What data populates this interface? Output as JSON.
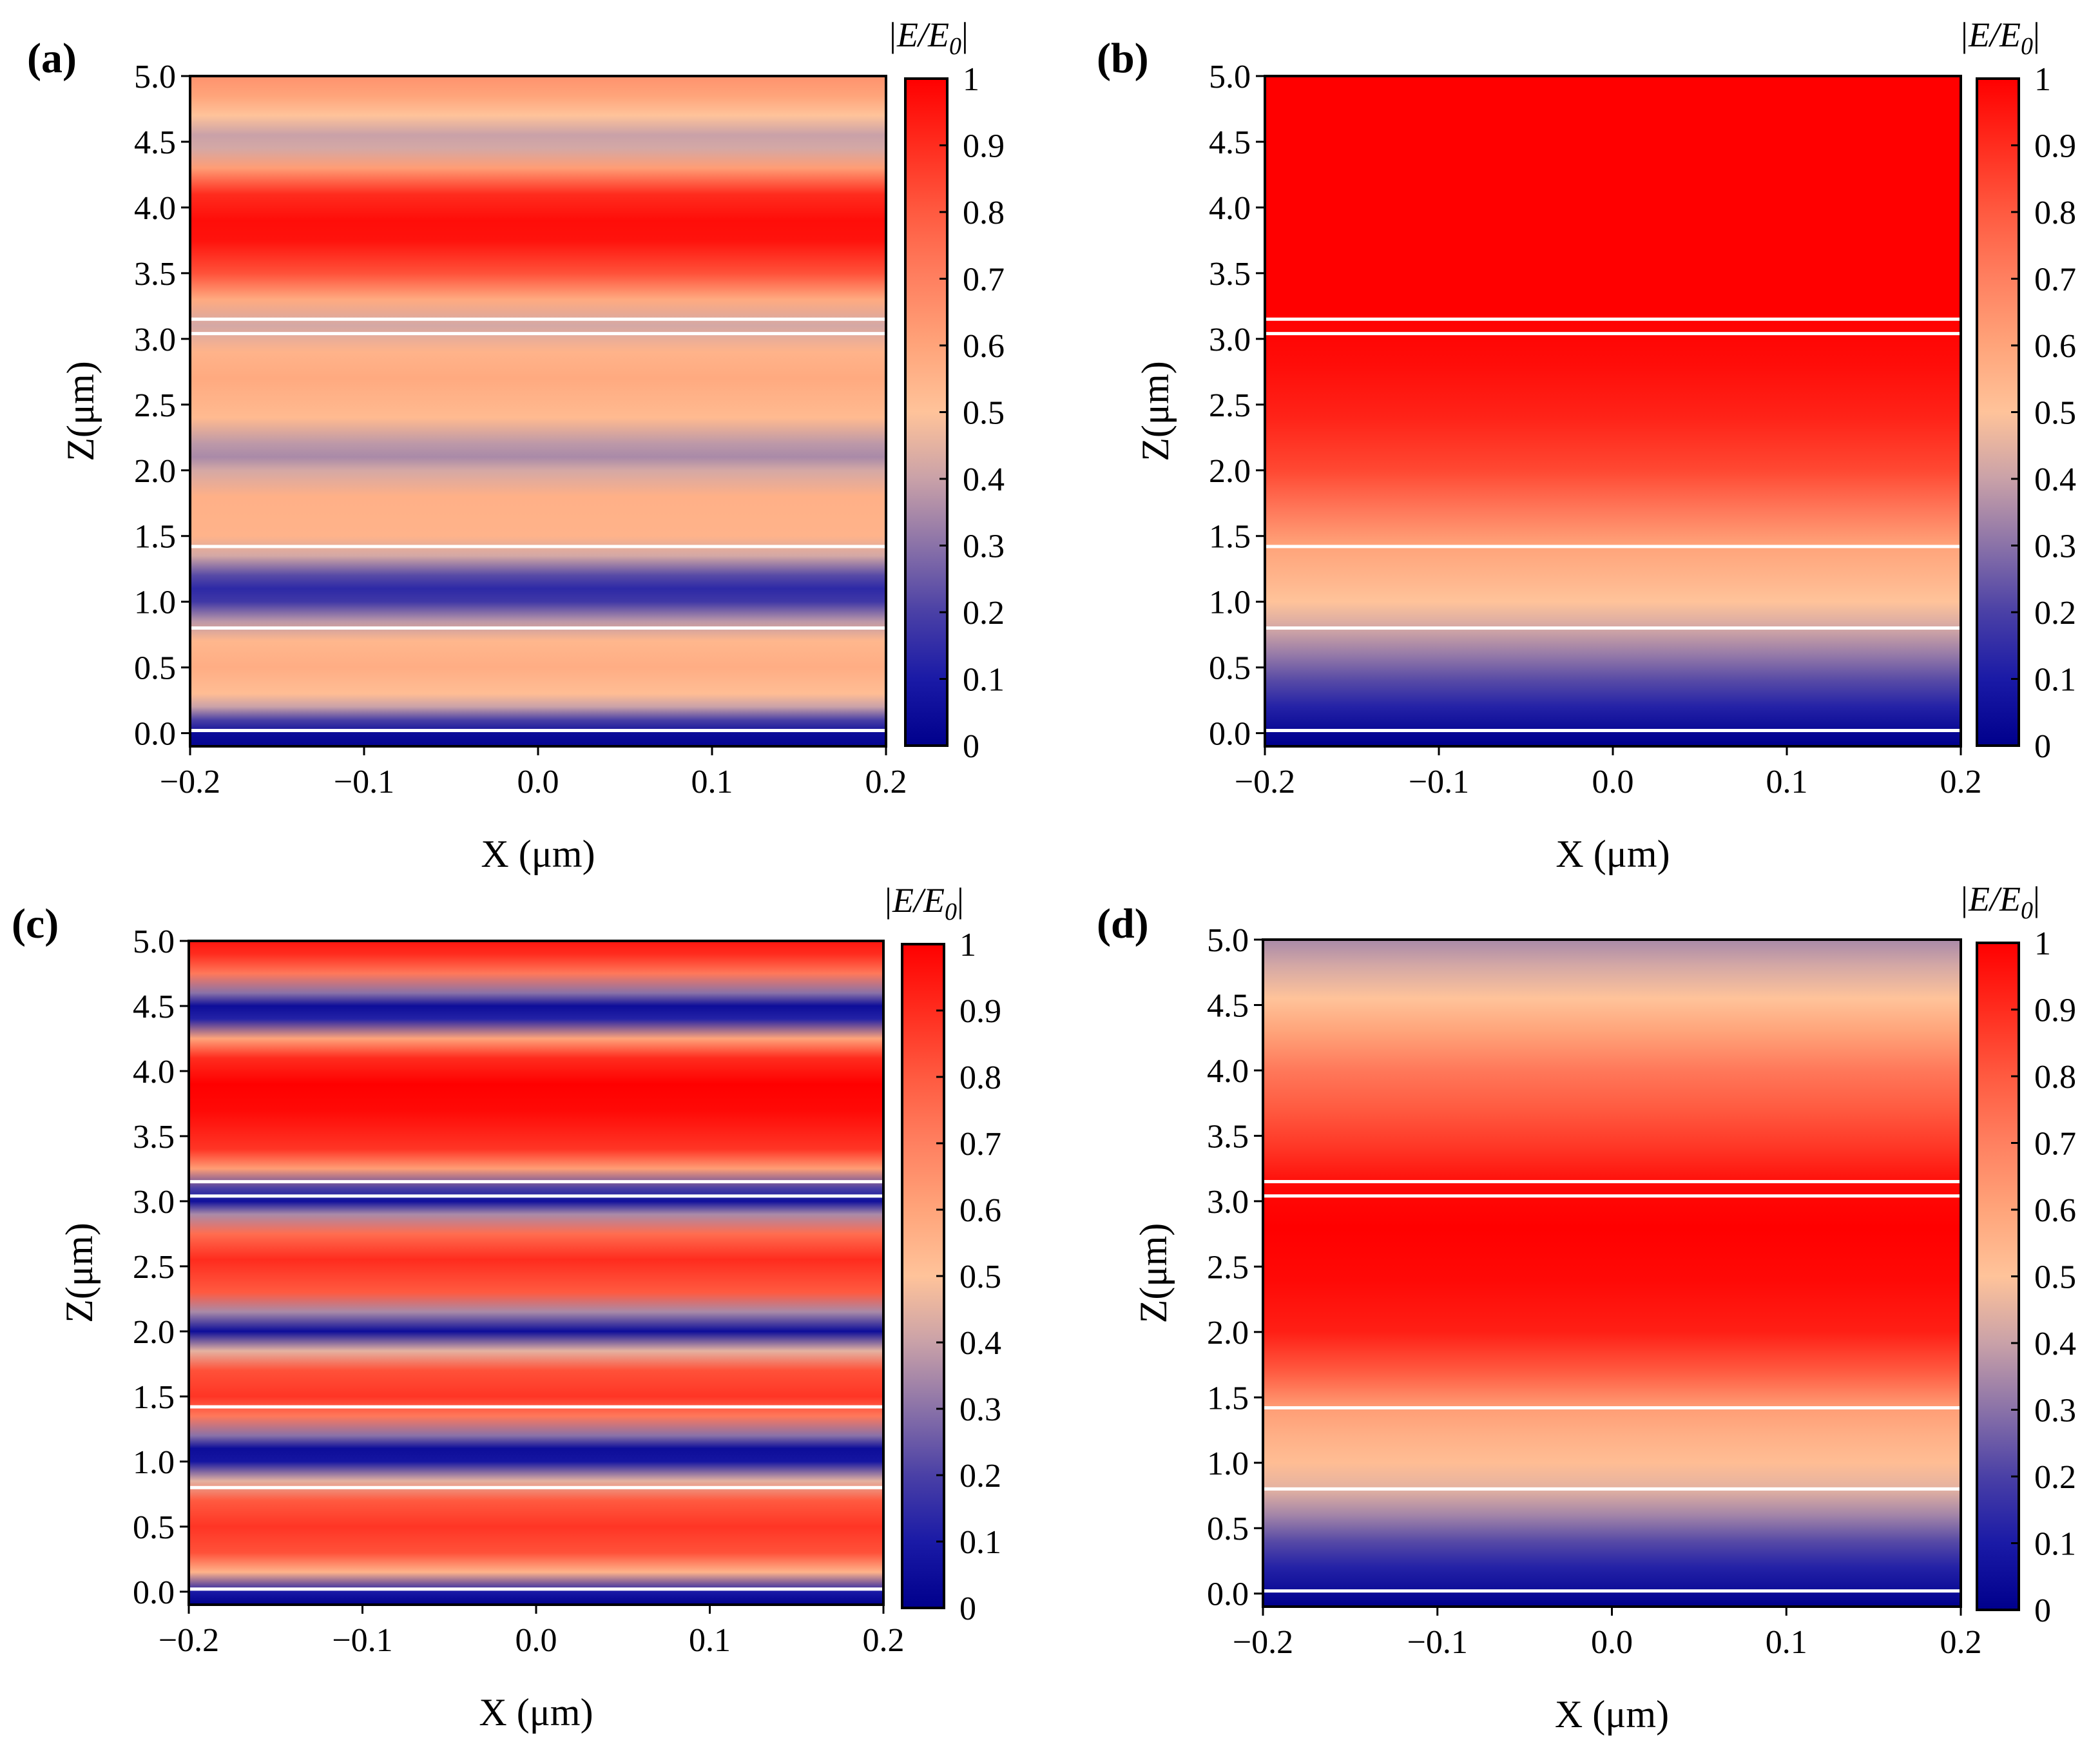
{
  "figure": {
    "colorbar_label_base": "|E/E",
    "colorbar_label_sub": "0",
    "colorbar_label_close": "|",
    "colorbar_ticks": [
      "0",
      "0.1",
      "0.2",
      "0.3",
      "0.4",
      "0.5",
      "0.6",
      "0.7",
      "0.8",
      "0.9",
      "1"
    ],
    "colormap": [
      {
        "v": 0.0,
        "color": "#00008c"
      },
      {
        "v": 0.1,
        "color": "#1a1aa6"
      },
      {
        "v": 0.2,
        "color": "#4a40a6"
      },
      {
        "v": 0.3,
        "color": "#8a72a8"
      },
      {
        "v": 0.4,
        "color": "#c9a1a8"
      },
      {
        "v": 0.5,
        "color": "#ffc39a"
      },
      {
        "v": 0.6,
        "color": "#ffa47a"
      },
      {
        "v": 0.7,
        "color": "#ff8060"
      },
      {
        "v": 0.8,
        "color": "#ff5a40"
      },
      {
        "v": 0.9,
        "color": "#ff2c1e"
      },
      {
        "v": 1.0,
        "color": "#ff0000"
      }
    ],
    "interface_line_color": "#ffffff"
  },
  "chart_data": [
    {
      "panel": "(a)",
      "type": "heatmap",
      "xlabel": "X (μm)",
      "ylabel": "Z(μm)",
      "xlim": [
        -0.2,
        0.2
      ],
      "ylim": [
        -0.1,
        5.0
      ],
      "xticks": [
        "−0.2",
        "−0.1",
        "0.0",
        "0.1",
        "0.2"
      ],
      "xtick_values": [
        -0.2,
        -0.1,
        0.0,
        0.1,
        0.2
      ],
      "yticks": [
        "0.0",
        "0.5",
        "1.0",
        "1.5",
        "2.0",
        "2.5",
        "3.0",
        "3.5",
        "4.0",
        "4.5",
        "5.0"
      ],
      "ytick_values": [
        0.0,
        0.5,
        1.0,
        1.5,
        2.0,
        2.5,
        3.0,
        3.5,
        4.0,
        4.5,
        5.0
      ],
      "colorbar_range": [
        0,
        1
      ],
      "interfaces_z": [
        0.02,
        0.8,
        1.42,
        3.04,
        3.15
      ],
      "profile": [
        {
          "z": -0.1,
          "v": 0.02
        },
        {
          "z": 0.0,
          "v": 0.05
        },
        {
          "z": 0.1,
          "v": 0.2
        },
        {
          "z": 0.2,
          "v": 0.4
        },
        {
          "z": 0.3,
          "v": 0.52
        },
        {
          "z": 0.5,
          "v": 0.57
        },
        {
          "z": 0.7,
          "v": 0.54
        },
        {
          "z": 0.85,
          "v": 0.38
        },
        {
          "z": 1.0,
          "v": 0.18
        },
        {
          "z": 1.1,
          "v": 0.14
        },
        {
          "z": 1.2,
          "v": 0.22
        },
        {
          "z": 1.35,
          "v": 0.42
        },
        {
          "z": 1.5,
          "v": 0.55
        },
        {
          "z": 1.8,
          "v": 0.56
        },
        {
          "z": 2.0,
          "v": 0.42
        },
        {
          "z": 2.1,
          "v": 0.35
        },
        {
          "z": 2.2,
          "v": 0.38
        },
        {
          "z": 2.4,
          "v": 0.53
        },
        {
          "z": 2.7,
          "v": 0.58
        },
        {
          "z": 2.9,
          "v": 0.55
        },
        {
          "z": 3.1,
          "v": 0.42
        },
        {
          "z": 3.3,
          "v": 0.58
        },
        {
          "z": 3.5,
          "v": 0.82
        },
        {
          "z": 3.75,
          "v": 0.96
        },
        {
          "z": 3.9,
          "v": 0.97
        },
        {
          "z": 4.1,
          "v": 0.9
        },
        {
          "z": 4.3,
          "v": 0.62
        },
        {
          "z": 4.45,
          "v": 0.42
        },
        {
          "z": 4.55,
          "v": 0.4
        },
        {
          "z": 4.7,
          "v": 0.5
        },
        {
          "z": 4.85,
          "v": 0.6
        },
        {
          "z": 5.0,
          "v": 0.65
        }
      ]
    },
    {
      "panel": "(b)",
      "type": "heatmap",
      "xlabel": "X (μm)",
      "ylabel": "Z(μm)",
      "xlim": [
        -0.2,
        0.2
      ],
      "ylim": [
        -0.1,
        5.0
      ],
      "xticks": [
        "−0.2",
        "−0.1",
        "0.0",
        "0.1",
        "0.2"
      ],
      "xtick_values": [
        -0.2,
        -0.1,
        0.0,
        0.1,
        0.2
      ],
      "yticks": [
        "0.0",
        "0.5",
        "1.0",
        "1.5",
        "2.0",
        "2.5",
        "3.0",
        "3.5",
        "4.0",
        "4.5",
        "5.0"
      ],
      "ytick_values": [
        0.0,
        0.5,
        1.0,
        1.5,
        2.0,
        2.5,
        3.0,
        3.5,
        4.0,
        4.5,
        5.0
      ],
      "colorbar_range": [
        0,
        1
      ],
      "interfaces_z": [
        0.02,
        0.8,
        1.42,
        3.04,
        3.15
      ],
      "profile": [
        {
          "z": -0.1,
          "v": 0.0
        },
        {
          "z": 0.0,
          "v": 0.03
        },
        {
          "z": 0.2,
          "v": 0.12
        },
        {
          "z": 0.4,
          "v": 0.22
        },
        {
          "z": 0.6,
          "v": 0.32
        },
        {
          "z": 0.8,
          "v": 0.42
        },
        {
          "z": 1.0,
          "v": 0.5
        },
        {
          "z": 1.2,
          "v": 0.55
        },
        {
          "z": 1.42,
          "v": 0.6
        },
        {
          "z": 1.7,
          "v": 0.72
        },
        {
          "z": 2.0,
          "v": 0.84
        },
        {
          "z": 2.4,
          "v": 0.92
        },
        {
          "z": 2.8,
          "v": 0.97
        },
        {
          "z": 3.2,
          "v": 1.0
        },
        {
          "z": 5.0,
          "v": 1.0
        }
      ]
    },
    {
      "panel": "(c)",
      "type": "heatmap",
      "xlabel": "X (μm)",
      "ylabel": "Z(μm)",
      "xlim": [
        -0.2,
        0.2
      ],
      "ylim": [
        -0.1,
        5.0
      ],
      "xticks": [
        "−0.2",
        "−0.1",
        "0.0",
        "0.1",
        "0.2"
      ],
      "xtick_values": [
        -0.2,
        -0.1,
        0.0,
        0.1,
        0.2
      ],
      "yticks": [
        "0.0",
        "0.5",
        "1.0",
        "1.5",
        "2.0",
        "2.5",
        "3.0",
        "3.5",
        "4.0",
        "4.5",
        "5.0"
      ],
      "ytick_values": [
        0.0,
        0.5,
        1.0,
        1.5,
        2.0,
        2.5,
        3.0,
        3.5,
        4.0,
        4.5,
        5.0
      ],
      "colorbar_range": [
        0,
        1
      ],
      "interfaces_z": [
        0.02,
        0.8,
        1.42,
        3.04,
        3.15
      ],
      "profile": [
        {
          "z": -0.1,
          "v": 0.0
        },
        {
          "z": 0.0,
          "v": 0.1
        },
        {
          "z": 0.15,
          "v": 0.55
        },
        {
          "z": 0.3,
          "v": 0.82
        },
        {
          "z": 0.5,
          "v": 0.88
        },
        {
          "z": 0.7,
          "v": 0.8
        },
        {
          "z": 0.85,
          "v": 0.45
        },
        {
          "z": 1.0,
          "v": 0.08
        },
        {
          "z": 1.1,
          "v": 0.05
        },
        {
          "z": 1.2,
          "v": 0.3
        },
        {
          "z": 1.35,
          "v": 0.72
        },
        {
          "z": 1.5,
          "v": 0.88
        },
        {
          "z": 1.7,
          "v": 0.82
        },
        {
          "z": 1.85,
          "v": 0.45
        },
        {
          "z": 2.0,
          "v": 0.05
        },
        {
          "z": 2.15,
          "v": 0.35
        },
        {
          "z": 2.3,
          "v": 0.8
        },
        {
          "z": 2.55,
          "v": 0.9
        },
        {
          "z": 2.75,
          "v": 0.75
        },
        {
          "z": 2.9,
          "v": 0.35
        },
        {
          "z": 3.0,
          "v": 0.06
        },
        {
          "z": 3.1,
          "v": 0.2
        },
        {
          "z": 3.25,
          "v": 0.62
        },
        {
          "z": 3.4,
          "v": 0.88
        },
        {
          "z": 3.7,
          "v": 0.98
        },
        {
          "z": 3.9,
          "v": 1.0
        },
        {
          "z": 4.1,
          "v": 0.9
        },
        {
          "z": 4.25,
          "v": 0.6
        },
        {
          "z": 4.4,
          "v": 0.12
        },
        {
          "z": 4.5,
          "v": 0.05
        },
        {
          "z": 4.6,
          "v": 0.3
        },
        {
          "z": 4.75,
          "v": 0.72
        },
        {
          "z": 4.9,
          "v": 0.9
        },
        {
          "z": 5.0,
          "v": 0.95
        }
      ]
    },
    {
      "panel": "(d)",
      "type": "heatmap",
      "xlabel": "X (μm)",
      "ylabel": "Z(μm)",
      "xlim": [
        -0.2,
        0.2
      ],
      "ylim": [
        -0.1,
        5.0
      ],
      "xticks": [
        "−0.2",
        "−0.1",
        "0.0",
        "0.1",
        "0.2"
      ],
      "xtick_values": [
        -0.2,
        -0.1,
        0.0,
        0.1,
        0.2
      ],
      "yticks": [
        "0.0",
        "0.5",
        "1.0",
        "1.5",
        "2.0",
        "2.5",
        "3.0",
        "3.5",
        "4.0",
        "4.5",
        "5.0"
      ],
      "ytick_values": [
        0.0,
        0.5,
        1.0,
        1.5,
        2.0,
        2.5,
        3.0,
        3.5,
        4.0,
        4.5,
        5.0
      ],
      "colorbar_range": [
        0,
        1
      ],
      "interfaces_z": [
        0.02,
        0.8,
        1.42,
        3.04,
        3.15
      ],
      "profile": [
        {
          "z": -0.1,
          "v": 0.0
        },
        {
          "z": 0.0,
          "v": 0.04
        },
        {
          "z": 0.2,
          "v": 0.12
        },
        {
          "z": 0.4,
          "v": 0.22
        },
        {
          "z": 0.6,
          "v": 0.34
        },
        {
          "z": 0.8,
          "v": 0.45
        },
        {
          "z": 1.0,
          "v": 0.52
        },
        {
          "z": 1.2,
          "v": 0.56
        },
        {
          "z": 1.42,
          "v": 0.62
        },
        {
          "z": 1.7,
          "v": 0.8
        },
        {
          "z": 2.0,
          "v": 0.93
        },
        {
          "z": 2.4,
          "v": 0.98
        },
        {
          "z": 2.8,
          "v": 1.0
        },
        {
          "z": 3.1,
          "v": 0.98
        },
        {
          "z": 3.4,
          "v": 0.88
        },
        {
          "z": 3.7,
          "v": 0.8
        },
        {
          "z": 4.0,
          "v": 0.72
        },
        {
          "z": 4.3,
          "v": 0.6
        },
        {
          "z": 4.55,
          "v": 0.5
        },
        {
          "z": 4.8,
          "v": 0.42
        },
        {
          "z": 5.0,
          "v": 0.35
        }
      ]
    }
  ]
}
